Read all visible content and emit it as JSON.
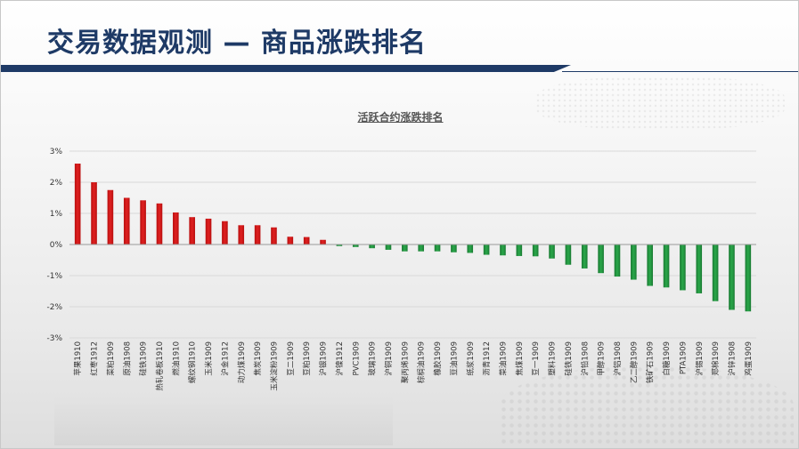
{
  "page": {
    "title": "交易数据观测 — 商品涨跌排名"
  },
  "colors": {
    "title": "#1e3a66",
    "positive": "#e02020",
    "negative": "#2aa84a",
    "axis": "#333333",
    "grid": "#d9d9d9"
  },
  "chart_data": {
    "type": "bar",
    "title": "活跃合约涨跌排名",
    "xlabel": "",
    "ylabel": "",
    "ylim": [
      -3,
      3
    ],
    "yticks": [
      3,
      2,
      1,
      0,
      -1,
      -2,
      -3
    ],
    "ytick_labels": [
      "3%",
      "2%",
      "1%",
      "0%",
      "-1%",
      "-2%",
      "-3%"
    ],
    "grid": true,
    "legend": "none",
    "categories": [
      "苹果1910",
      "红枣1912",
      "菜粕1909",
      "原油1908",
      "硅铁1909",
      "热轧卷板1910",
      "燃油1910",
      "螺纹钢1910",
      "玉米1909",
      "沪金1912",
      "动力煤1909",
      "焦炭1909",
      "玉米淀粉1909",
      "豆二1909",
      "豆粕1909",
      "沪银1909",
      "沪镍1912",
      "PVC1909",
      "玻璃1909",
      "沪铜1909",
      "聚丙烯1909",
      "棕榈油1909",
      "橡胶1909",
      "豆油1909",
      "纸浆1909",
      "沥青1912",
      "菜油1909",
      "焦煤1909",
      "豆一1909",
      "塑料1909",
      "硅铁1909",
      "沪铅1908",
      "甲醇1909",
      "沪铝1908",
      "乙二醇1909",
      "铁矿石1909",
      "白糖1909",
      "PTA1909",
      "沪锡1909",
      "郑棉1909",
      "沪锌1908",
      "鸡蛋1909"
    ],
    "values": [
      2.6,
      2.0,
      1.75,
      1.5,
      1.42,
      1.32,
      1.03,
      0.88,
      0.83,
      0.75,
      0.62,
      0.62,
      0.55,
      0.25,
      0.24,
      0.15,
      -0.05,
      -0.08,
      -0.12,
      -0.17,
      -0.22,
      -0.22,
      -0.22,
      -0.25,
      -0.27,
      -0.33,
      -0.35,
      -0.37,
      -0.38,
      -0.45,
      -0.65,
      -0.77,
      -0.92,
      -1.03,
      -1.13,
      -1.33,
      -1.38,
      -1.47,
      -1.57,
      -1.82,
      -2.1,
      -2.15
    ]
  }
}
